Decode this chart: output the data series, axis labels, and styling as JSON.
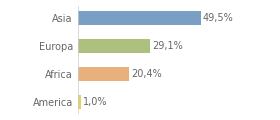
{
  "categories": [
    "Asia",
    "Europa",
    "Africa",
    "America"
  ],
  "values": [
    49.5,
    29.1,
    20.4,
    1.0
  ],
  "labels": [
    "49,5%",
    "29,1%",
    "20,4%",
    "1,0%"
  ],
  "bar_colors": [
    "#7a9fc4",
    "#adc07e",
    "#e8b07a",
    "#e8d060"
  ],
  "background_color": "#ffffff",
  "xlim": [
    0,
    68
  ],
  "bar_height": 0.5,
  "label_fontsize": 7.0,
  "tick_fontsize": 7.0,
  "label_color": "#666666",
  "tick_color": "#666666"
}
